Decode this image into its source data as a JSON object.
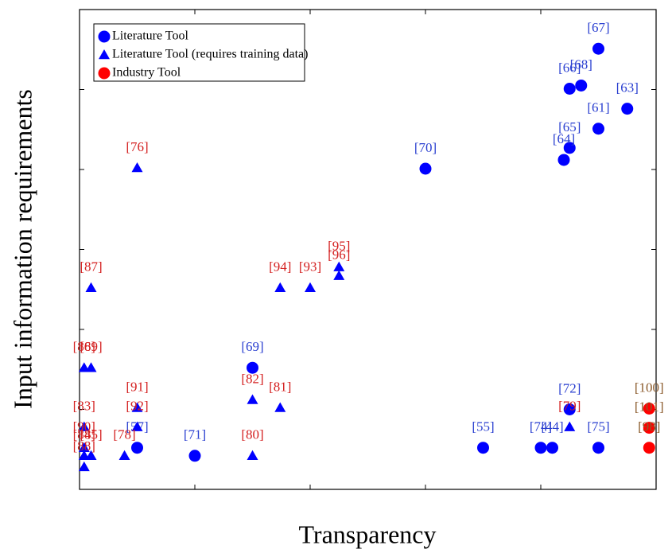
{
  "chart_data": {
    "type": "scatter",
    "xlabel": "Transparency",
    "ylabel": "Input information requirements",
    "xlim": [
      0,
      5
    ],
    "xticks": [
      1,
      2,
      3,
      4
    ],
    "ylim": [
      0,
      6
    ],
    "yticks": [
      1,
      2,
      3,
      4,
      5
    ],
    "legend": "upper left",
    "series": [
      {
        "name": "Literature Tool",
        "color": "#0000ff",
        "marker": "circle",
        "label_color": "#2a3fd0",
        "labels": [
          "[67]",
          "[68]",
          "[66]",
          "[63]",
          "[61]",
          "[65]",
          "[64]",
          "[70]",
          "[69]",
          "[72]",
          "[55]",
          "[74]",
          "[44]",
          "[75]",
          "[71]",
          "[57]"
        ],
        "x": [
          4.5,
          4.35,
          4.25,
          4.75,
          4.5,
          4.25,
          4.2,
          3.0,
          1.5,
          4.25,
          3.5,
          4.0,
          4.1,
          4.5,
          1.0,
          0.5
        ],
        "values": [
          5.51,
          5.05,
          5.01,
          4.76,
          4.51,
          4.27,
          4.12,
          4.01,
          1.52,
          1.0,
          0.52,
          0.52,
          0.52,
          0.52,
          0.42,
          0.52
        ]
      },
      {
        "name": "Literature Tool (requires training data)",
        "color": "#0000ff",
        "marker": "triangle",
        "label_color": "#d42020",
        "labels": [
          "[76]",
          "[87]",
          "[94]",
          "[93]",
          "[95]",
          "[96]",
          "[86]",
          "[89]",
          "[91]",
          "[92]",
          "[82]",
          "[81]",
          "[80]",
          "[78]",
          "[79]",
          "[83]",
          "[90]",
          "[84]",
          "[85]",
          "[88]"
        ],
        "x": [
          0.5,
          0.1,
          1.74,
          2.0,
          2.25,
          2.25,
          0.04,
          0.1,
          0.5,
          0.5,
          1.5,
          1.74,
          1.5,
          0.39,
          4.25,
          0.04,
          0.04,
          0.04,
          0.1,
          0.04
        ],
        "values": [
          4.02,
          2.52,
          2.52,
          2.52,
          2.78,
          2.67,
          1.52,
          1.52,
          1.02,
          0.78,
          1.12,
          1.02,
          0.42,
          0.42,
          0.78,
          0.78,
          0.52,
          0.42,
          0.42,
          0.28
        ]
      },
      {
        "name": "Industry Tool",
        "color": "#ff0000",
        "marker": "circle",
        "label_color": "#8b5a2b",
        "labels": [
          "[100]",
          "[101]",
          "[98]"
        ],
        "x": [
          4.94,
          4.94,
          4.94
        ],
        "values": [
          1.01,
          0.77,
          0.52
        ]
      }
    ]
  }
}
